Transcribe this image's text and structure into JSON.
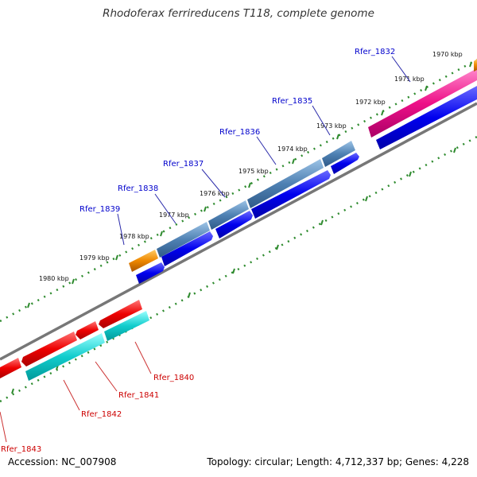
{
  "title": "Rhodoferax ferrireducens T118, complete genome",
  "footer": {
    "accession": "Accession: NC_007908",
    "summary": "Topology: circular; Length: 4,712,337 bp; Genes: 4,228"
  },
  "colors": {
    "backbone": "#777777",
    "ruler_dots": "#2e8b2e",
    "forward_label": "#0000cc",
    "reverse_label": "#cc0000",
    "blue_cds": "#0000ee",
    "steelblue_gene": "#4f81b3",
    "magenta_gene": "#ee1188",
    "orange_gene": "#ee8800",
    "red_gene": "#ee0000",
    "cyan_gene": "#11cccc"
  },
  "ruler": {
    "unit": "kbp",
    "ticks": [
      "1970 kbp",
      "1971 kbp",
      "1972 kbp",
      "1973 kbp",
      "1974 kbp",
      "1975 kbp",
      "1976 kbp",
      "1977 kbp",
      "1978 kbp",
      "1979 kbp",
      "1980 kbp"
    ]
  },
  "forward_genes": [
    {
      "id": "Rfer_1832",
      "color": "magenta"
    },
    {
      "id": "Rfer_1835",
      "color": "steelblue"
    },
    {
      "id": "Rfer_1836",
      "color": "steelblue"
    },
    {
      "id": "Rfer_1837",
      "color": "steelblue"
    },
    {
      "id": "Rfer_1838",
      "color": "steelblue"
    },
    {
      "id": "Rfer_1839",
      "color": "orange"
    }
  ],
  "reverse_genes": [
    {
      "id": "Rfer_1840",
      "color": "cyan"
    },
    {
      "id": "Rfer_1841",
      "color": "cyan"
    },
    {
      "id": "Rfer_1842",
      "color": "cyan"
    },
    {
      "id": "Rfer_1843",
      "color": "red"
    }
  ]
}
